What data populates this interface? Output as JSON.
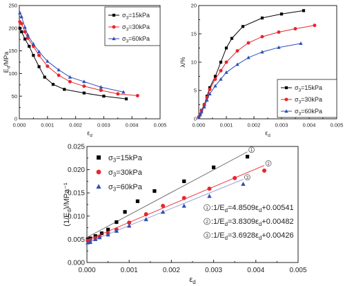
{
  "chart_data": [
    {
      "type": "line",
      "xlabel": "ε_d",
      "ylabel": "E_d/MPa",
      "xlim": [
        0,
        0.005
      ],
      "ylim": [
        0,
        250
      ],
      "xticks": [
        "0.000",
        "0.001",
        "0.002",
        "0.003",
        "0.004",
        "0.005"
      ],
      "yticks": [
        "0",
        "50",
        "100",
        "150",
        "200",
        "250"
      ],
      "legend_position": "top-right",
      "series": [
        {
          "name": "σ3=15kPa",
          "color": "#000000",
          "marker": "square",
          "x": [
            2e-05,
            8e-05,
            0.0002,
            0.00035,
            0.0005,
            0.0007,
            0.0009,
            0.0012,
            0.0016,
            0.0023,
            0.003,
            0.0038
          ],
          "y": [
            200,
            192,
            176,
            160,
            140,
            115,
            92,
            76,
            65,
            57,
            50,
            44
          ]
        },
        {
          "name": "σ3=30kPa",
          "color": "#e8262c",
          "marker": "circle",
          "x": [
            2e-05,
            8e-05,
            0.0002,
            0.0003,
            0.0005,
            0.0007,
            0.001,
            0.0014,
            0.0018,
            0.0023,
            0.0029,
            0.0035,
            0.0042
          ],
          "y": [
            214,
            210,
            192,
            178,
            160,
            140,
            116,
            96,
            82,
            72,
            63,
            55,
            51
          ]
        },
        {
          "name": "σ3=60kPa",
          "color": "#2f4fb5",
          "marker": "triangle",
          "x": [
            2e-05,
            8e-05,
            0.0002,
            0.0003,
            0.0005,
            0.0007,
            0.001,
            0.0014,
            0.0018,
            0.0023,
            0.0029,
            0.0037
          ],
          "y": [
            234,
            225,
            202,
            185,
            165,
            148,
            127,
            108,
            92,
            82,
            70,
            59
          ]
        }
      ]
    },
    {
      "type": "line",
      "xlabel": "ε_d",
      "ylabel": "λ/%",
      "xlim": [
        0,
        0.005
      ],
      "ylim": [
        0,
        20
      ],
      "xticks": [
        "0.000",
        "0.001",
        "0.002",
        "0.003",
        "0.004",
        "0.005"
      ],
      "yticks": [
        "0",
        "5",
        "10",
        "15",
        "20"
      ],
      "legend_position": "bottom-right",
      "series": [
        {
          "name": "σ3=15kPa",
          "color": "#000000",
          "marker": "square",
          "x": [
            0,
            5e-05,
            0.0001,
            0.0002,
            0.0003,
            0.0004,
            0.0006,
            0.0008,
            0.001,
            0.0012,
            0.0016,
            0.0023,
            0.003,
            0.0038
          ],
          "y": [
            0.3,
            0.8,
            1.5,
            2.5,
            4,
            5.5,
            7.5,
            10,
            12.5,
            14.2,
            16.3,
            17.8,
            18.5,
            19.1
          ]
        },
        {
          "name": "σ3=30kPa",
          "color": "#e8262c",
          "marker": "circle",
          "x": [
            0,
            5e-05,
            0.0001,
            0.0002,
            0.0003,
            0.0004,
            0.0006,
            0.0008,
            0.001,
            0.0014,
            0.0018,
            0.0023,
            0.0029,
            0.0035,
            0.0042
          ],
          "y": [
            0.3,
            0.8,
            1.4,
            2.4,
            3.8,
            5.2,
            7,
            8.5,
            10,
            12,
            13.4,
            14.5,
            15.3,
            15.9,
            16.5
          ]
        },
        {
          "name": "σ3=60kPa",
          "color": "#2f4fb5",
          "marker": "triangle",
          "x": [
            0,
            5e-05,
            0.0001,
            0.0002,
            0.0003,
            0.0004,
            0.0006,
            0.0008,
            0.001,
            0.0014,
            0.0018,
            0.0023,
            0.0029,
            0.0037
          ],
          "y": [
            0.2,
            0.7,
            1.2,
            2.1,
            3.3,
            4.4,
            5.8,
            7,
            8.2,
            9.6,
            10.8,
            11.8,
            12.6,
            13.3
          ]
        }
      ]
    },
    {
      "type": "scatter",
      "xlabel": "ε_d",
      "ylabel": "(1/E_d)/MPa⁻¹",
      "xlim": [
        0,
        0.005
      ],
      "ylim": [
        0,
        0.025
      ],
      "xticks": [
        "0.000",
        "0.001",
        "0.002",
        "0.003",
        "0.004",
        "0.005"
      ],
      "yticks": [
        "0.000",
        "0.005",
        "0.010",
        "0.015",
        "0.020",
        "0.025"
      ],
      "legend_position": "top-left",
      "series": [
        {
          "name": "σ3=15kPa",
          "color": "#000000",
          "marker": "square",
          "x": [
            2e-05,
            8e-05,
            0.0002,
            0.00035,
            0.0005,
            0.0007,
            0.0009,
            0.0012,
            0.0016,
            0.0023,
            0.003,
            0.0038
          ],
          "y": [
            0.005,
            0.0052,
            0.0057,
            0.0063,
            0.0071,
            0.0087,
            0.0109,
            0.0132,
            0.0154,
            0.0175,
            0.0205,
            0.0228
          ],
          "fit_line": {
            "slope": 4.8509,
            "intercept": 0.00541,
            "x_end": 0.0038,
            "marker_label": "1"
          }
        },
        {
          "name": "σ3=30kPa",
          "color": "#e8262c",
          "marker": "circle",
          "x": [
            2e-05,
            8e-05,
            0.0002,
            0.0003,
            0.0005,
            0.0007,
            0.001,
            0.0014,
            0.0018,
            0.0023,
            0.0029,
            0.0035,
            0.0042
          ],
          "y": [
            0.0047,
            0.0048,
            0.0052,
            0.0056,
            0.0063,
            0.0071,
            0.0086,
            0.0104,
            0.0122,
            0.0139,
            0.0159,
            0.0182,
            0.0198
          ],
          "fit_line": {
            "slope": 3.8309,
            "intercept": 0.00482,
            "x_end": 0.0042,
            "marker_label": "2"
          }
        },
        {
          "name": "σ3=60kPa",
          "color": "#2f4fb5",
          "marker": "triangle",
          "x": [
            2e-05,
            8e-05,
            0.0002,
            0.0003,
            0.0005,
            0.0007,
            0.001,
            0.0014,
            0.0018,
            0.0023,
            0.0029,
            0.0037
          ],
          "y": [
            0.0043,
            0.0044,
            0.005,
            0.0054,
            0.006,
            0.0068,
            0.0079,
            0.0093,
            0.0109,
            0.0122,
            0.0143,
            0.0169
          ],
          "fit_line": {
            "slope": 3.6928,
            "intercept": 0.00426,
            "x_end": 0.0037,
            "marker_label": "3"
          }
        }
      ],
      "annotations": [
        {
          "marker_label": "1",
          "text": ":1/E_d=4.8509ε_d+0.00541"
        },
        {
          "marker_label": "2",
          "text": ":1/E_d=3.8309ε_d+0.00482"
        },
        {
          "marker_label": "3",
          "text": ":1/E_d=3.6928ε_d+0.00426"
        }
      ]
    }
  ]
}
